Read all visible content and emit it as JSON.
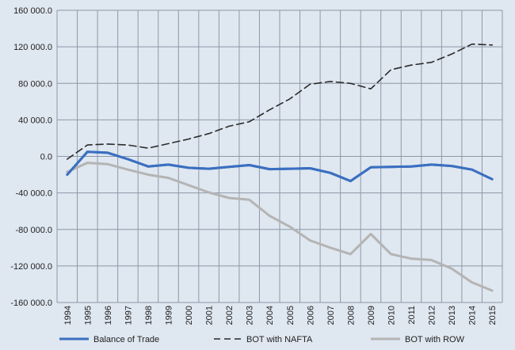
{
  "chart_data": {
    "type": "line",
    "title": "",
    "xlabel": "",
    "ylabel": "",
    "ylim": [
      -160000,
      160000
    ],
    "yticks": [
      160000,
      120000,
      80000,
      40000,
      0,
      -40000,
      -80000,
      -120000,
      -160000
    ],
    "ytick_labels": [
      "160 000.0",
      "120 000.0",
      "80 000.0",
      "40 000.0",
      "0.0",
      "-40 000.0",
      "-80 000.0",
      "-120 000.0",
      "-160 000.0"
    ],
    "grid": true,
    "legend_position": "bottom",
    "x": [
      "1994",
      "1995",
      "1996",
      "1997",
      "1998",
      "1999",
      "2000",
      "2001",
      "2002",
      "2003",
      "2004",
      "2005",
      "2006",
      "2007",
      "2008",
      "2009",
      "2010",
      "2011",
      "2012",
      "2013",
      "2014",
      "2015"
    ],
    "series": [
      {
        "name": "Balance of Trade",
        "color": "#3a6fc0",
        "style": "solid",
        "values": [
          -20000,
          5000,
          4000,
          -3000,
          -11000,
          -9000,
          -12500,
          -13500,
          -11500,
          -9500,
          -14000,
          -13500,
          -13000,
          -18000,
          -27000,
          -12000,
          -11500,
          -11000,
          -9000,
          -10500,
          -14500,
          -25000
        ]
      },
      {
        "name": "BOT with NAFTA",
        "color": "#2b2b2b",
        "style": "dashed",
        "values": [
          -3000,
          12500,
          13500,
          12500,
          9000,
          14000,
          19000,
          25000,
          33000,
          38000,
          51000,
          63000,
          79000,
          82000,
          80000,
          74000,
          95000,
          100000,
          103000,
          112000,
          123000,
          122000
        ]
      },
      {
        "name": "BOT with ROW",
        "color": "#b4b4b4",
        "style": "solid",
        "values": [
          -17000,
          -7000,
          -8500,
          -14500,
          -20000,
          -23500,
          -31500,
          -39500,
          -45500,
          -47500,
          -65000,
          -77000,
          -92000,
          -100000,
          -107000,
          -85000,
          -107000,
          -112000,
          -113500,
          -123000,
          -138000,
          -147000
        ]
      }
    ]
  },
  "colors": {
    "background": "#dfe7f0",
    "grid": "#8e98a8"
  }
}
